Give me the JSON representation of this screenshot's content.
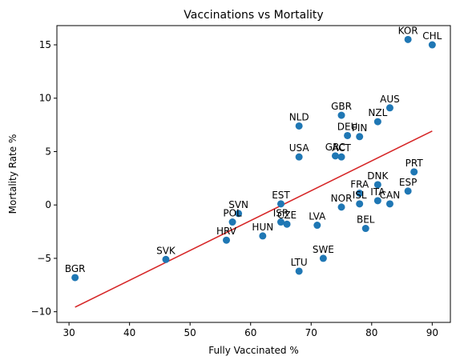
{
  "chart_data": {
    "type": "scatter",
    "title": "Vaccinations vs Mortality",
    "xlabel": "Fully Vaccinated %",
    "ylabel": "Mortality Rate %",
    "xlim": [
      28,
      93
    ],
    "ylim": [
      -11,
      16.8
    ],
    "xticks": [
      30,
      40,
      50,
      60,
      70,
      80,
      90
    ],
    "yticks": [
      -10,
      -5,
      0,
      5,
      10,
      15
    ],
    "grid": false,
    "marker_color": "#1f77b4",
    "trend_color": "#d62728",
    "trend": {
      "slope": 0.2796,
      "intercept": -18.24,
      "x_range": [
        31,
        90
      ]
    },
    "points": [
      {
        "label": "KOR",
        "x": 86,
        "y": 15.5
      },
      {
        "label": "CHL",
        "x": 90,
        "y": 15.0
      },
      {
        "label": "AUS",
        "x": 83,
        "y": 9.1
      },
      {
        "label": "GBR",
        "x": 75,
        "y": 8.4
      },
      {
        "label": "NZL",
        "x": 81,
        "y": 7.8
      },
      {
        "label": "NLD",
        "x": 68,
        "y": 7.4
      },
      {
        "label": "DEU",
        "x": 76,
        "y": 6.5
      },
      {
        "label": "FIN",
        "x": 78,
        "y": 6.4
      },
      {
        "label": "GRC",
        "x": 74,
        "y": 4.6
      },
      {
        "label": "ACT",
        "x": 75,
        "y": 4.5
      },
      {
        "label": "USA",
        "x": 68,
        "y": 4.5
      },
      {
        "label": "PRT",
        "x": 87,
        "y": 3.1
      },
      {
        "label": "DNK",
        "x": 81,
        "y": 1.9
      },
      {
        "label": "ESP",
        "x": 86,
        "y": 1.3
      },
      {
        "label": "FRA",
        "x": 78,
        "y": 1.1
      },
      {
        "label": "ITA",
        "x": 81,
        "y": 0.4
      },
      {
        "label": "ISL",
        "x": 78,
        "y": 0.1
      },
      {
        "label": "CAN",
        "x": 83,
        "y": 0.1
      },
      {
        "label": "EST",
        "x": 65,
        "y": 0.1
      },
      {
        "label": "NOR",
        "x": 75,
        "y": -0.2
      },
      {
        "label": "SVN",
        "x": 58,
        "y": -0.8
      },
      {
        "label": "POL",
        "x": 57,
        "y": -1.6
      },
      {
        "label": "ISR",
        "x": 65,
        "y": -1.6
      },
      {
        "label": "CZE",
        "x": 66,
        "y": -1.8
      },
      {
        "label": "LVA",
        "x": 71,
        "y": -1.9
      },
      {
        "label": "BEL",
        "x": 79,
        "y": -2.2
      },
      {
        "label": "HRV",
        "x": 56,
        "y": -3.3
      },
      {
        "label": "HUN",
        "x": 62,
        "y": -2.9
      },
      {
        "label": "SVK",
        "x": 46,
        "y": -5.1
      },
      {
        "label": "SWE",
        "x": 72,
        "y": -5.0
      },
      {
        "label": "LTU",
        "x": 68,
        "y": -6.2
      },
      {
        "label": "BGR",
        "x": 31,
        "y": -6.8
      }
    ]
  }
}
